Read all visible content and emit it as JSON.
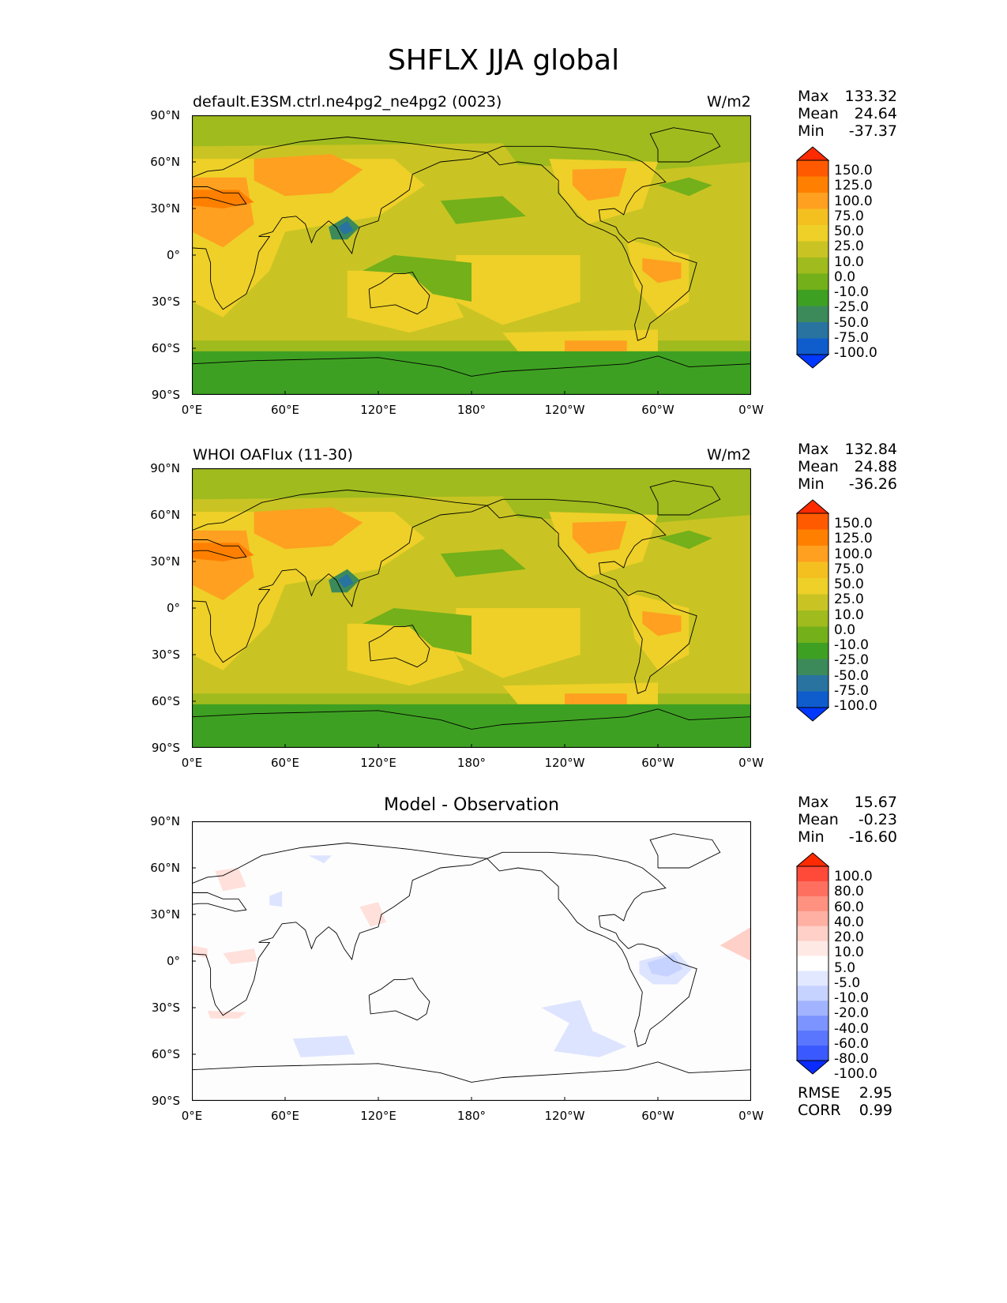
{
  "figure": {
    "title": "SHFLX JJA global"
  },
  "chart_data": [
    {
      "type": "heatmap",
      "title": "default.E3SM.ctrl.ne4pg2_ne4pg2 (0023)",
      "units": "W/m2",
      "xticks": [
        "0°E",
        "60°E",
        "120°E",
        "180°",
        "120°W",
        "60°W",
        "0°W"
      ],
      "yticks": [
        "90°N",
        "60°N",
        "30°N",
        "0°",
        "30°S",
        "60°S",
        "90°S"
      ],
      "xlim": [
        0,
        360
      ],
      "ylim": [
        -90,
        90
      ],
      "stats": {
        "max_label": "Max",
        "max": "133.32",
        "mean_label": "Mean",
        "mean": "24.64",
        "min_label": "Min",
        "min": "-37.37"
      },
      "colorbar": {
        "levels": [
          "150.0",
          "125.0",
          "100.0",
          "75.0",
          "50.0",
          "25.0",
          "10.0",
          "0.0",
          "-10.0",
          "-25.0",
          "-50.0",
          "-75.0",
          "-100.0"
        ],
        "colors": [
          "#ff2a00",
          "#ff5a00",
          "#ff8000",
          "#ffa020",
          "#f4c020",
          "#eed028",
          "#c9c423",
          "#9fbb1e",
          "#73b01a",
          "#3ea022",
          "#3c8a5a",
          "#2873a0",
          "#0f5ccc",
          "#0038ff"
        ]
      }
    },
    {
      "type": "heatmap",
      "title": "WHOI OAFlux (11-30)",
      "units": "W/m2",
      "xticks": [
        "0°E",
        "60°E",
        "120°E",
        "180°",
        "120°W",
        "60°W",
        "0°W"
      ],
      "yticks": [
        "90°N",
        "60°N",
        "30°N",
        "0°",
        "30°S",
        "60°S",
        "90°S"
      ],
      "xlim": [
        0,
        360
      ],
      "ylim": [
        -90,
        90
      ],
      "stats": {
        "max_label": "Max",
        "max": "132.84",
        "mean_label": "Mean",
        "mean": "24.88",
        "min_label": "Min",
        "min": "-36.26"
      },
      "colorbar": {
        "levels": [
          "150.0",
          "125.0",
          "100.0",
          "75.0",
          "50.0",
          "25.0",
          "10.0",
          "0.0",
          "-10.0",
          "-25.0",
          "-50.0",
          "-75.0",
          "-100.0"
        ],
        "colors": [
          "#ff2a00",
          "#ff5a00",
          "#ff8000",
          "#ffa020",
          "#f4c020",
          "#eed028",
          "#c9c423",
          "#9fbb1e",
          "#73b01a",
          "#3ea022",
          "#3c8a5a",
          "#2873a0",
          "#0f5ccc",
          "#0038ff"
        ]
      }
    },
    {
      "type": "heatmap",
      "title": "Model - Observation",
      "units": "",
      "xticks": [
        "0°E",
        "60°E",
        "120°E",
        "180°",
        "120°W",
        "60°W",
        "0°W"
      ],
      "yticks": [
        "90°N",
        "60°N",
        "30°N",
        "0°",
        "30°S",
        "60°S",
        "90°S"
      ],
      "xlim": [
        0,
        360
      ],
      "ylim": [
        -90,
        90
      ],
      "stats": {
        "max_label": "Max",
        "max": "15.67",
        "mean_label": "Mean",
        "mean": "-0.23",
        "min_label": "Min",
        "min": "-16.60"
      },
      "metrics": {
        "rmse_label": "RMSE",
        "rmse": "2.95",
        "corr_label": "CORR",
        "corr": "0.99"
      },
      "colorbar": {
        "levels": [
          "100.0",
          "80.0",
          "60.0",
          "40.0",
          "20.0",
          "10.0",
          "5.0",
          "-5.0",
          "-10.0",
          "-20.0",
          "-40.0",
          "-60.0",
          "-80.0",
          "-100.0"
        ],
        "colors": [
          "#ff2a00",
          "#ff4a3a",
          "#ff6f5f",
          "#ff9180",
          "#ffb0a3",
          "#ffd0c7",
          "#ffe9e4",
          "#ffffff",
          "#e2e8ff",
          "#c6d2ff",
          "#a2b4ff",
          "#7b94ff",
          "#5a76ff",
          "#3a59ff",
          "#0a2cff"
        ]
      }
    }
  ]
}
